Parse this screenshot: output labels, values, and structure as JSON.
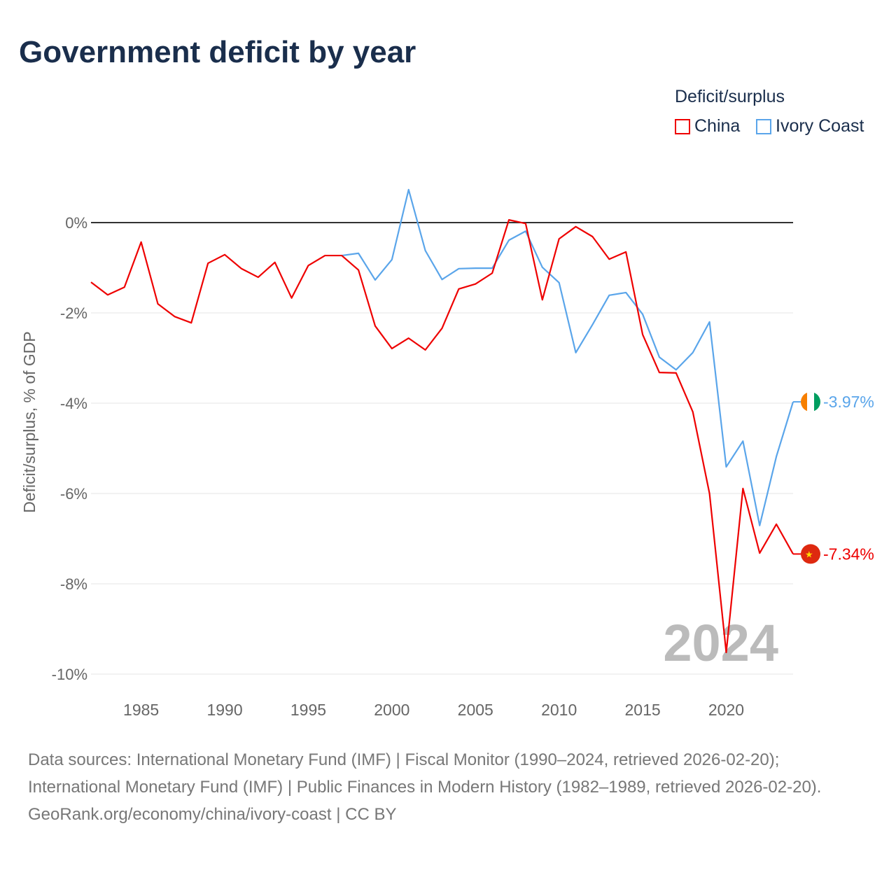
{
  "title": "Government deficit by year",
  "legend": {
    "title": "Deficit/surplus",
    "items": [
      {
        "name": "China",
        "color": "#ee0000"
      },
      {
        "name": "Ivory Coast",
        "color": "#5aa5ea"
      }
    ]
  },
  "sources": {
    "line1": "Data sources: International Monetary Fund (IMF) | Fiscal Monitor (1990–2024, retrieved 2026-02-20); International Monetary Fund (IMF) | Public Finances in Modern History (1982–1989, retrieved 2026-02-20).",
    "line2": "GeoRank.org/economy/china/ivory-coast | CC BY"
  },
  "chart_data": {
    "type": "line",
    "title": "Government deficit by year",
    "ylabel": "Deficit/surplus, % of GDP",
    "xlim": [
      1982,
      2024
    ],
    "ylim": [
      -10,
      1
    ],
    "yticks": [
      0,
      -2,
      -4,
      -6,
      -8,
      -10
    ],
    "ytick_labels": [
      "0%",
      "-2%",
      "-4%",
      "-6%",
      "-8%",
      "-10%"
    ],
    "xticks": [
      1985,
      1990,
      1995,
      2000,
      2005,
      2010,
      2015,
      2020
    ],
    "xtick_labels": [
      "1985",
      "1990",
      "1995",
      "2000",
      "2005",
      "2010",
      "2015",
      "2020"
    ],
    "watermark": "2024",
    "series": [
      {
        "name": "China",
        "color": "#ee0000",
        "end_label": "-7.34%",
        "start": 1982,
        "values": [
          -1.32,
          -1.6,
          -1.43,
          -0.43,
          -1.8,
          -2.08,
          -2.22,
          -0.9,
          -0.71,
          -1.02,
          -1.21,
          -0.88,
          -1.67,
          -0.95,
          -0.73,
          -0.73,
          -1.05,
          -2.29,
          -2.79,
          -2.56,
          -2.82,
          -2.34,
          -1.47,
          -1.36,
          -1.12,
          0.06,
          -0.02,
          -1.71,
          -0.36,
          -0.09,
          -0.31,
          -0.81,
          -0.65,
          -2.48,
          -3.32,
          -3.33,
          -4.19,
          -6.0,
          -9.52,
          -5.89,
          -7.32,
          -6.68,
          -7.34
        ]
      },
      {
        "name": "Ivory Coast",
        "color": "#5aa5ea",
        "end_label": "-3.97%",
        "start": 1997,
        "values": [
          -0.73,
          -0.68,
          -1.27,
          -0.82,
          0.73,
          -0.62,
          -1.26,
          -1.02,
          -1.01,
          -1.01,
          -0.39,
          -0.19,
          -0.99,
          -1.33,
          -2.88,
          -2.26,
          -1.61,
          -1.55,
          -2.03,
          -2.98,
          -3.26,
          -2.88,
          -2.2,
          -5.41,
          -4.84,
          -6.71,
          -5.18,
          -3.97
        ]
      }
    ]
  }
}
